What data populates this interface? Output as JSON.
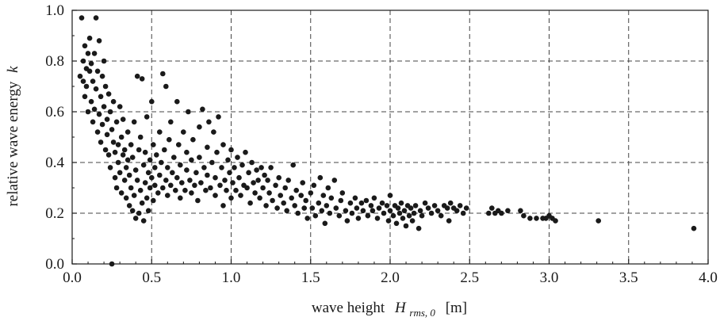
{
  "chart_data": {
    "type": "scatter",
    "title": "",
    "xlabel": {
      "prefix": "wave height",
      "symbol": "H",
      "subscript": "rms, 0",
      "unit": "[m]"
    },
    "ylabel": {
      "text": "relative wave energy",
      "symbol": "k"
    },
    "xlim": [
      0.0,
      4.0
    ],
    "ylim": [
      0.0,
      1.0
    ],
    "x_ticks": [
      0.0,
      0.5,
      1.0,
      1.5,
      2.0,
      2.5,
      3.0,
      3.5,
      4.0
    ],
    "x_tick_labels": [
      "0.0",
      "0.5",
      "1.0",
      "1.5",
      "2.0",
      "2.5",
      "3.0",
      "3.5",
      "4.0"
    ],
    "y_ticks": [
      0.0,
      0.2,
      0.4,
      0.6,
      0.8,
      1.0
    ],
    "y_tick_labels": [
      "0.0",
      "0.2",
      "0.4",
      "0.6",
      "0.8",
      "1.0"
    ],
    "grid": "dashed",
    "marker_color": "#1a1a1a",
    "points": [
      [
        0.05,
        0.74
      ],
      [
        0.06,
        0.97
      ],
      [
        0.07,
        0.72
      ],
      [
        0.07,
        0.8
      ],
      [
        0.08,
        0.86
      ],
      [
        0.08,
        0.66
      ],
      [
        0.09,
        0.77
      ],
      [
        0.09,
        0.7
      ],
      [
        0.1,
        0.83
      ],
      [
        0.1,
        0.6
      ],
      [
        0.11,
        0.76
      ],
      [
        0.11,
        0.89
      ],
      [
        0.12,
        0.64
      ],
      [
        0.12,
        0.79
      ],
      [
        0.13,
        0.56
      ],
      [
        0.13,
        0.72
      ],
      [
        0.14,
        0.83
      ],
      [
        0.14,
        0.61
      ],
      [
        0.15,
        0.97
      ],
      [
        0.15,
        0.69
      ],
      [
        0.16,
        0.52
      ],
      [
        0.16,
        0.76
      ],
      [
        0.17,
        0.88
      ],
      [
        0.17,
        0.59
      ],
      [
        0.18,
        0.66
      ],
      [
        0.18,
        0.48
      ],
      [
        0.19,
        0.74
      ],
      [
        0.19,
        0.55
      ],
      [
        0.2,
        0.8
      ],
      [
        0.2,
        0.62
      ],
      [
        0.21,
        0.45
      ],
      [
        0.21,
        0.7
      ],
      [
        0.22,
        0.57
      ],
      [
        0.22,
        0.51
      ],
      [
        0.23,
        0.67
      ],
      [
        0.23,
        0.43
      ],
      [
        0.24,
        0.6
      ],
      [
        0.24,
        0.38
      ],
      [
        0.25,
        0.0
      ],
      [
        0.25,
        0.53
      ],
      [
        0.26,
        0.48
      ],
      [
        0.26,
        0.64
      ],
      [
        0.27,
        0.34
      ],
      [
        0.27,
        0.44
      ],
      [
        0.28,
        0.56
      ],
      [
        0.28,
        0.3
      ],
      [
        0.29,
        0.47
      ],
      [
        0.29,
        0.4
      ],
      [
        0.3,
        0.62
      ],
      [
        0.3,
        0.36
      ],
      [
        0.31,
        0.5
      ],
      [
        0.31,
        0.28
      ],
      [
        0.32,
        0.43
      ],
      [
        0.32,
        0.57
      ],
      [
        0.33,
        0.33
      ],
      [
        0.33,
        0.45
      ],
      [
        0.34,
        0.38
      ],
      [
        0.34,
        0.26
      ],
      [
        0.35,
        0.52
      ],
      [
        0.35,
        0.41
      ],
      [
        0.36,
        0.23
      ],
      [
        0.36,
        0.35
      ],
      [
        0.37,
        0.47
      ],
      [
        0.37,
        0.3
      ],
      [
        0.38,
        0.21
      ],
      [
        0.38,
        0.42
      ],
      [
        0.39,
        0.56
      ],
      [
        0.39,
        0.27
      ],
      [
        0.4,
        0.18
      ],
      [
        0.4,
        0.37
      ],
      [
        0.41,
        0.74
      ],
      [
        0.41,
        0.33
      ],
      [
        0.42,
        0.45
      ],
      [
        0.42,
        0.2
      ],
      [
        0.43,
        0.29
      ],
      [
        0.43,
        0.5
      ],
      [
        0.44,
        0.73
      ],
      [
        0.44,
        0.24
      ],
      [
        0.45,
        0.39
      ],
      [
        0.45,
        0.17
      ],
      [
        0.46,
        0.32
      ],
      [
        0.46,
        0.44
      ],
      [
        0.47,
        0.26
      ],
      [
        0.47,
        0.58
      ],
      [
        0.48,
        0.36
      ],
      [
        0.48,
        0.21
      ],
      [
        0.49,
        0.41
      ],
      [
        0.49,
        0.3
      ],
      [
        0.5,
        0.64
      ],
      [
        0.5,
        0.34
      ],
      [
        0.51,
        0.47
      ],
      [
        0.51,
        0.25
      ],
      [
        0.52,
        0.38
      ],
      [
        0.52,
        0.31
      ],
      [
        0.53,
        0.43
      ],
      [
        0.54,
        0.28
      ],
      [
        0.55,
        0.52
      ],
      [
        0.55,
        0.35
      ],
      [
        0.56,
        0.4
      ],
      [
        0.57,
        0.75
      ],
      [
        0.57,
        0.3
      ],
      [
        0.58,
        0.45
      ],
      [
        0.59,
        0.33
      ],
      [
        0.59,
        0.7
      ],
      [
        0.6,
        0.27
      ],
      [
        0.6,
        0.38
      ],
      [
        0.61,
        0.49
      ],
      [
        0.62,
        0.31
      ],
      [
        0.62,
        0.56
      ],
      [
        0.63,
        0.36
      ],
      [
        0.64,
        0.42
      ],
      [
        0.65,
        0.29
      ],
      [
        0.66,
        0.64
      ],
      [
        0.66,
        0.34
      ],
      [
        0.67,
        0.47
      ],
      [
        0.68,
        0.26
      ],
      [
        0.68,
        0.39
      ],
      [
        0.69,
        0.32
      ],
      [
        0.7,
        0.52
      ],
      [
        0.71,
        0.29
      ],
      [
        0.72,
        0.37
      ],
      [
        0.72,
        0.44
      ],
      [
        0.73,
        0.6
      ],
      [
        0.74,
        0.33
      ],
      [
        0.75,
        0.28
      ],
      [
        0.75,
        0.41
      ],
      [
        0.76,
        0.49
      ],
      [
        0.77,
        0.31
      ],
      [
        0.78,
        0.36
      ],
      [
        0.79,
        0.25
      ],
      [
        0.8,
        0.54
      ],
      [
        0.8,
        0.42
      ],
      [
        0.81,
        0.32
      ],
      [
        0.82,
        0.61
      ],
      [
        0.83,
        0.38
      ],
      [
        0.84,
        0.29
      ],
      [
        0.85,
        0.46
      ],
      [
        0.85,
        0.35
      ],
      [
        0.86,
        0.56
      ],
      [
        0.87,
        0.3
      ],
      [
        0.88,
        0.4
      ],
      [
        0.89,
        0.52
      ],
      [
        0.9,
        0.27
      ],
      [
        0.9,
        0.34
      ],
      [
        0.91,
        0.44
      ],
      [
        0.92,
        0.58
      ],
      [
        0.93,
        0.31
      ],
      [
        0.94,
        0.38
      ],
      [
        0.95,
        0.23
      ],
      [
        0.95,
        0.47
      ],
      [
        0.96,
        0.33
      ],
      [
        0.97,
        0.29
      ],
      [
        0.98,
        0.41
      ],
      [
        0.99,
        0.36
      ],
      [
        1.0,
        0.26
      ],
      [
        1.0,
        0.45
      ],
      [
        1.01,
        0.32
      ],
      [
        1.02,
        0.38
      ],
      [
        1.03,
        0.29
      ],
      [
        1.04,
        0.42
      ],
      [
        1.05,
        0.34
      ],
      [
        1.06,
        0.27
      ],
      [
        1.07,
        0.39
      ],
      [
        1.08,
        0.31
      ],
      [
        1.09,
        0.44
      ],
      [
        1.1,
        0.3
      ],
      [
        1.11,
        0.36
      ],
      [
        1.12,
        0.24
      ],
      [
        1.13,
        0.4
      ],
      [
        1.14,
        0.32
      ],
      [
        1.15,
        0.28
      ],
      [
        1.16,
        0.37
      ],
      [
        1.17,
        0.33
      ],
      [
        1.18,
        0.26
      ],
      [
        1.19,
        0.38
      ],
      [
        1.2,
        0.3
      ],
      [
        1.21,
        0.35
      ],
      [
        1.22,
        0.23
      ],
      [
        1.23,
        0.33
      ],
      [
        1.24,
        0.28
      ],
      [
        1.25,
        0.38
      ],
      [
        1.26,
        0.25
      ],
      [
        1.28,
        0.31
      ],
      [
        1.29,
        0.22
      ],
      [
        1.3,
        0.34
      ],
      [
        1.31,
        0.27
      ],
      [
        1.33,
        0.24
      ],
      [
        1.34,
        0.3
      ],
      [
        1.35,
        0.21
      ],
      [
        1.36,
        0.33
      ],
      [
        1.38,
        0.26
      ],
      [
        1.39,
        0.39
      ],
      [
        1.4,
        0.23
      ],
      [
        1.41,
        0.29
      ],
      [
        1.42,
        0.2
      ],
      [
        1.44,
        0.27
      ],
      [
        1.45,
        0.32
      ],
      [
        1.46,
        0.22
      ],
      [
        1.47,
        0.25
      ],
      [
        1.48,
        0.18
      ],
      [
        1.5,
        0.28
      ],
      [
        1.51,
        0.22
      ],
      [
        1.52,
        0.31
      ],
      [
        1.53,
        0.19
      ],
      [
        1.55,
        0.24
      ],
      [
        1.56,
        0.34
      ],
      [
        1.57,
        0.21
      ],
      [
        1.58,
        0.27
      ],
      [
        1.59,
        0.16
      ],
      [
        1.6,
        0.23
      ],
      [
        1.61,
        0.3
      ],
      [
        1.62,
        0.2
      ],
      [
        1.63,
        0.26
      ],
      [
        1.65,
        0.33
      ],
      [
        1.66,
        0.22
      ],
      [
        1.68,
        0.19
      ],
      [
        1.69,
        0.25
      ],
      [
        1.7,
        0.28
      ],
      [
        1.72,
        0.21
      ],
      [
        1.73,
        0.17
      ],
      [
        1.75,
        0.24
      ],
      [
        1.76,
        0.2
      ],
      [
        1.78,
        0.26
      ],
      [
        1.79,
        0.22
      ],
      [
        1.8,
        0.18
      ],
      [
        1.82,
        0.24
      ],
      [
        1.83,
        0.21
      ],
      [
        1.85,
        0.25
      ],
      [
        1.86,
        0.19
      ],
      [
        1.88,
        0.23
      ],
      [
        1.89,
        0.21
      ],
      [
        1.9,
        0.26
      ],
      [
        1.92,
        0.18
      ],
      [
        1.93,
        0.22
      ],
      [
        1.95,
        0.24
      ],
      [
        1.96,
        0.2
      ],
      [
        1.98,
        0.23
      ],
      [
        1.99,
        0.17
      ],
      [
        2.0,
        0.21
      ],
      [
        2.0,
        0.27
      ],
      [
        2.02,
        0.19
      ],
      [
        2.03,
        0.23
      ],
      [
        2.04,
        0.16
      ],
      [
        2.05,
        0.22
      ],
      [
        2.06,
        0.2
      ],
      [
        2.07,
        0.24
      ],
      [
        2.08,
        0.18
      ],
      [
        2.09,
        0.21
      ],
      [
        2.1,
        0.15
      ],
      [
        2.11,
        0.23
      ],
      [
        2.12,
        0.19
      ],
      [
        2.13,
        0.22
      ],
      [
        2.14,
        0.17
      ],
      [
        2.15,
        0.2
      ],
      [
        2.16,
        0.23
      ],
      [
        2.18,
        0.14
      ],
      [
        2.19,
        0.21
      ],
      [
        2.2,
        0.19
      ],
      [
        2.22,
        0.24
      ],
      [
        2.24,
        0.22
      ],
      [
        2.26,
        0.2
      ],
      [
        2.28,
        0.23
      ],
      [
        2.3,
        0.21
      ],
      [
        2.32,
        0.19
      ],
      [
        2.34,
        0.23
      ],
      [
        2.36,
        0.22
      ],
      [
        2.37,
        0.17
      ],
      [
        2.38,
        0.24
      ],
      [
        2.4,
        0.22
      ],
      [
        2.42,
        0.21
      ],
      [
        2.44,
        0.23
      ],
      [
        2.46,
        0.2
      ],
      [
        2.48,
        0.22
      ],
      [
        2.62,
        0.2
      ],
      [
        2.64,
        0.22
      ],
      [
        2.66,
        0.2
      ],
      [
        2.68,
        0.21
      ],
      [
        2.7,
        0.2
      ],
      [
        2.74,
        0.21
      ],
      [
        2.82,
        0.21
      ],
      [
        2.84,
        0.19
      ],
      [
        2.88,
        0.18
      ],
      [
        2.92,
        0.18
      ],
      [
        2.96,
        0.18
      ],
      [
        2.98,
        0.18
      ],
      [
        3.0,
        0.19
      ],
      [
        3.02,
        0.18
      ],
      [
        3.04,
        0.17
      ],
      [
        3.31,
        0.17
      ],
      [
        3.91,
        0.14
      ]
    ]
  }
}
